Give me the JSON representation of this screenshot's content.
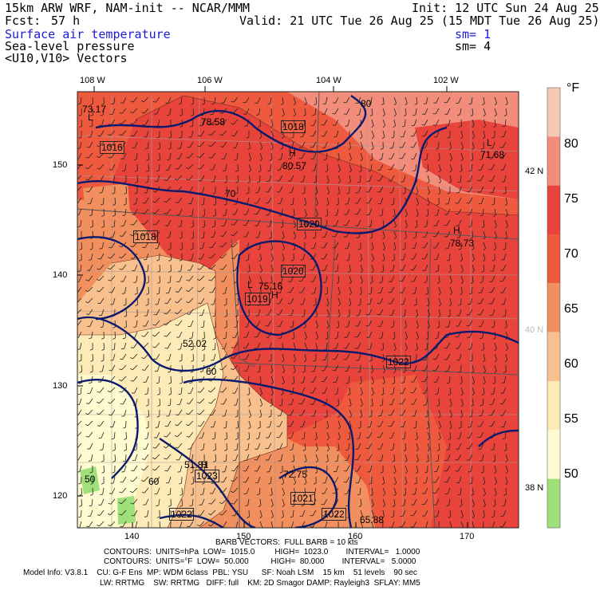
{
  "header": {
    "line1_left": "15km ARW WRF, NAM-init -- NCAR/MMM",
    "line1_right": "Init: 12 UTC Sun 24 Aug 25",
    "fcst_label": "Fcst:",
    "fcst_value": "57 h",
    "valid": "Valid: 21 UTC Tue 26 Aug 25 (15 MDT Tue 26 Aug 25)",
    "field1": "Surface air temperature",
    "field1_sm": "sm= 1",
    "field2": "Sea-level pressure",
    "field2_sm": "sm= 4",
    "field3": "<U10,V10> Vectors"
  },
  "axes": {
    "top_lon": [
      "108 W",
      "106 W",
      "104 W",
      "102 W"
    ],
    "right_lat": [
      "42 N",
      "40 N",
      "38 N"
    ],
    "left_y": [
      "150",
      "140",
      "130",
      "120"
    ],
    "bottom_x": [
      "140",
      "150",
      "160",
      "170"
    ]
  },
  "colorbar": {
    "unit": "°F",
    "labels": [
      "80",
      "75",
      "70",
      "65",
      "60",
      "55",
      "50"
    ],
    "colors": [
      "#f7c9b2",
      "#f28d7b",
      "#e8443c",
      "#ef5a3e",
      "#f28f5e",
      "#f7c08c",
      "#fcebb6",
      "#fffbd0",
      "#9fe07a"
    ]
  },
  "map_labels": {
    "isobars": [
      "1018",
      "1016",
      "1020",
      "1018",
      "1020",
      "1019",
      "1022",
      "1023",
      "1021",
      "1022",
      "1022"
    ],
    "temps": [
      "73.17",
      "78.58",
      "80.57",
      "71.68",
      "78.73",
      "75.16",
      "52.02",
      "51.81",
      "72.75",
      "65.88"
    ],
    "highs_lows": [
      "H",
      "H",
      "L",
      "L",
      "L",
      "H",
      "H"
    ],
    "contour_vals": [
      "80",
      "70",
      "60",
      "60",
      "50"
    ]
  },
  "footer": {
    "barb": "BARB VECTORS:  FULL BARB = 10 kts",
    "contours1": "CONTOURS:  UNITS=hPa  LOW=  1015.0         HIGH=  1023.0        INTERVAL=   1.0000",
    "contours2": "CONTOURS:  UNITS=°F  LOW=  50.000          HIGH=  80.000        INTERVAL=   5.0000",
    "model1": "Model Info: V3.8.1    CU: G-F Ens  MP: WDM 6class  PBL: YSU      SF: Noah LSM    15 km    51 levels    90 sec",
    "model2": "LW: RRTMG    SW: RRTMG   DIFF: full    KM: 2D Smagor DAMP: Rayleigh3  SFLAY: MM5"
  }
}
